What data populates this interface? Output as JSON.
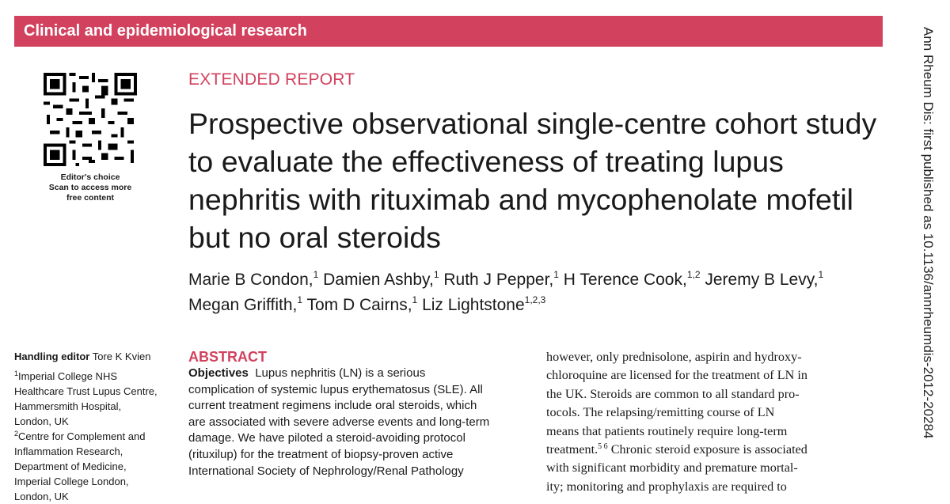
{
  "section_banner": "Clinical and epidemiological research",
  "qr_caption": [
    "Editor's choice",
    "Scan to access more",
    "free content"
  ],
  "article_type": "EXTENDED REPORT",
  "title": "Prospective observational single-centre cohort study to evaluate the effectiveness of treating lupus nephritis with rituximab and mycophenolate mofetil but no oral steroids",
  "authors": [
    {
      "name": "Marie B Condon,",
      "aff": "1"
    },
    {
      "name": "Damien Ashby,",
      "aff": "1"
    },
    {
      "name": "Ruth J Pepper,",
      "aff": "1"
    },
    {
      "name": "H Terence Cook,",
      "aff": "1,2"
    },
    {
      "name": "Jeremy B Levy,",
      "aff": "1"
    },
    {
      "name": "Megan Griffith,",
      "aff": "1"
    },
    {
      "name": "Tom D Cairns,",
      "aff": "1"
    },
    {
      "name": "Liz Lightstone",
      "aff": "1,2,3"
    }
  ],
  "handling_editor": {
    "label": "Handling editor",
    "name": "Tore K Kvien"
  },
  "affiliations": [
    {
      "num": "1",
      "lines": [
        "Imperial College NHS",
        "Healthcare Trust Lupus Centre,",
        "Hammersmith Hospital,",
        "London, UK"
      ]
    },
    {
      "num": "2",
      "lines": [
        "Centre for Complement and",
        "Inflammation Research,",
        "Department of Medicine,",
        "Imperial College London,",
        "London, UK"
      ]
    }
  ],
  "abstract": {
    "heading": "ABSTRACT",
    "objectives_label": "Objectives",
    "lines": [
      "Lupus nephritis (LN) is a serious",
      "complication of systemic lupus erythematosus (SLE). All",
      "current treatment regimens include oral steroids, which",
      "are associated with severe adverse events and long-term",
      "damage. We have piloted a steroid-avoiding protocol",
      "(rituxilup) for the treatment of biopsy-proven active",
      "International Society of Nephrology/Renal Pathology"
    ]
  },
  "body_column": {
    "lines": [
      "however, only prednisolone, aspirin and hydroxy-",
      "chloroquine are licensed for the treatment of LN in",
      "the UK. Steroids are common to all standard pro-",
      "tocols. The relapsing/remitting course of LN",
      "means that patients routinely require long-term",
      "treatment.",
      "Chronic steroid exposure is associated",
      "with significant morbidity and premature mortal-",
      "ity; monitoring and prophylaxis are required to"
    ],
    "ref_sup": "5 6"
  },
  "doi_text": "Ann Rheum Dis: first published as 10.1136/annrheumdis-2012-20284"
}
